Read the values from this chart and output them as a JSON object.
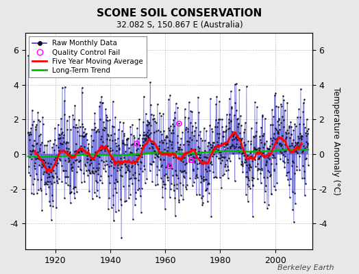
{
  "title": "SCONE SOIL CONSERVATION",
  "subtitle": "32.082 S, 150.867 E (Australia)",
  "ylabel": "Temperature Anomaly (°C)",
  "xlabel_years": [
    1920,
    1940,
    1960,
    1980,
    2000
  ],
  "ylim": [
    -5.5,
    7.0
  ],
  "yticks": [
    -4,
    -2,
    0,
    2,
    4,
    6
  ],
  "xlim": [
    1909.0,
    2013.5
  ],
  "year_start": 1910,
  "year_end": 2012,
  "background_color": "#e8e8e8",
  "plot_bg_color": "#ffffff",
  "raw_line_color": "#3333cc",
  "raw_marker_color": "#111111",
  "ma_color": "#ff0000",
  "trend_color": "#00bb00",
  "qc_color": "#ff00ff",
  "watermark": "Berkeley Earth",
  "seed": 137,
  "n_months": 1236
}
